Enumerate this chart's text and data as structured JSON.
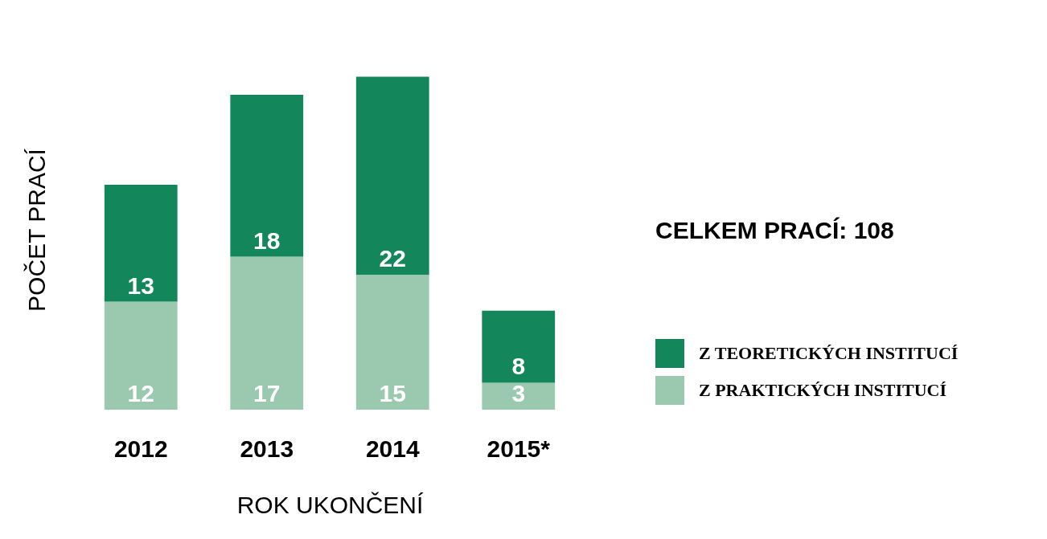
{
  "chart_data": {
    "type": "bar",
    "stacked": true,
    "categories": [
      "2012",
      "2013",
      "2014",
      "2015*"
    ],
    "series": [
      {
        "name": "Z PRAKTICKÝCH INSTITUCÍ",
        "color": "#9ac9b0",
        "values": [
          12,
          17,
          15,
          3
        ]
      },
      {
        "name": "Z TEORETICKÝCH INSTITUCÍ",
        "color": "#13865c",
        "values": [
          13,
          18,
          22,
          8
        ]
      }
    ],
    "xlabel": "ROK UKONČENÍ",
    "ylabel": "POČET PRACÍ",
    "annotations": [
      "CELKEM PRACÍ: 108"
    ],
    "data_labels": true,
    "legend": "right",
    "tick_labels": "x",
    "grid": false
  }
}
